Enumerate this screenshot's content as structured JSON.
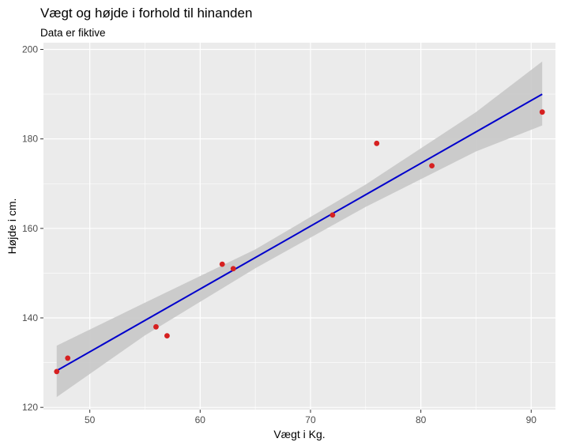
{
  "chart_data": {
    "type": "scatter",
    "title": "Vægt og højde i forhold til hinanden",
    "subtitle": "Data er fiktive",
    "xlabel": "Vægt i Kg.",
    "ylabel": "Højde i cm.",
    "xlim": [
      45.8,
      92.2
    ],
    "ylim": [
      119.5,
      201.5
    ],
    "x_ticks": [
      50,
      60,
      70,
      80,
      90
    ],
    "y_ticks": [
      120,
      140,
      160,
      180,
      200
    ],
    "grid": true,
    "points": [
      {
        "x": 47,
        "y": 128
      },
      {
        "x": 48,
        "y": 131
      },
      {
        "x": 56,
        "y": 138
      },
      {
        "x": 57,
        "y": 136
      },
      {
        "x": 62,
        "y": 152
      },
      {
        "x": 63,
        "y": 151
      },
      {
        "x": 72,
        "y": 163
      },
      {
        "x": 76,
        "y": 179
      },
      {
        "x": 81,
        "y": 174
      },
      {
        "x": 91,
        "y": 186
      }
    ],
    "fit": {
      "method": "linear",
      "start": {
        "x": 47,
        "y": 128.2
      },
      "end": {
        "x": 91,
        "y": 190.0
      },
      "ci_band": [
        {
          "x": 47,
          "lower": 122.3,
          "upper": 133.8
        },
        {
          "x": 55,
          "lower": 136.1,
          "upper": 143.4
        },
        {
          "x": 65,
          "lower": 151.1,
          "upper": 155.3
        },
        {
          "x": 75,
          "lower": 164.8,
          "upper": 169.8
        },
        {
          "x": 85,
          "lower": 177.2,
          "upper": 186.0
        },
        {
          "x": 91,
          "lower": 183.0,
          "upper": 197.3
        }
      ]
    },
    "colors": {
      "panel": "#ebebeb",
      "grid_major": "#ffffff",
      "point": "#d62020",
      "line": "#0000cc",
      "band": "#c8c8c8"
    }
  }
}
